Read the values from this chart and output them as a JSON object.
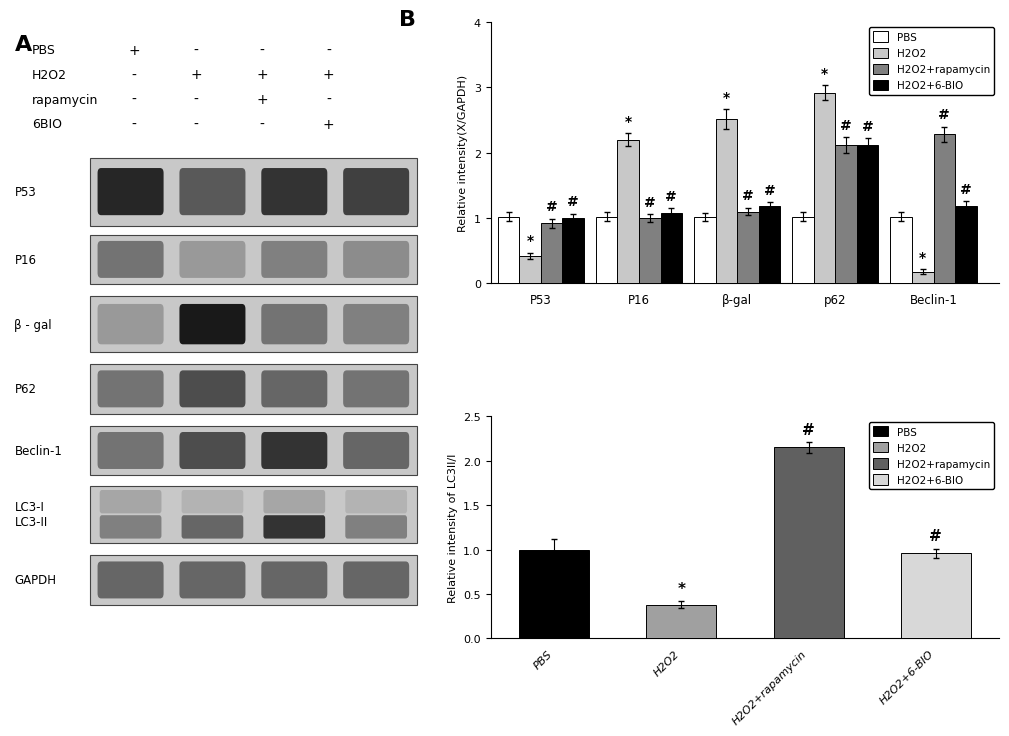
{
  "panel_A": {
    "labels_rows": [
      "PBS",
      "H2O2",
      "rapamycin",
      "6BIO"
    ],
    "cols": [
      "+",
      "-",
      "-",
      "-",
      "-",
      "+",
      "+",
      "+",
      "-",
      "-",
      "+",
      "-",
      "-",
      "-",
      "-",
      "+"
    ],
    "protein_labels": [
      "P53",
      "P16",
      "β - gal",
      "P62",
      "Beclin-1",
      "LC3-I\nLC3-II",
      "GAPDH"
    ],
    "n_bands": [
      1,
      1,
      1,
      1,
      1,
      2,
      1
    ],
    "band_intensities_P53": [
      0.85,
      0.65,
      0.8,
      0.75
    ],
    "band_intensities_P16": [
      0.55,
      0.4,
      0.5,
      0.45
    ],
    "band_intensities_bgal": [
      0.4,
      0.9,
      0.55,
      0.5
    ],
    "band_intensities_P62": [
      0.55,
      0.7,
      0.6,
      0.55
    ],
    "band_intensities_Beclin1": [
      0.55,
      0.7,
      0.8,
      0.6
    ],
    "band_intensities_LC3I": [
      0.35,
      0.3,
      0.35,
      0.3
    ],
    "band_intensities_LC3II": [
      0.5,
      0.6,
      0.8,
      0.5
    ],
    "band_intensities_GAPDH": [
      0.6,
      0.6,
      0.6,
      0.6
    ]
  },
  "panel_B_top": {
    "title": "",
    "ylabel": "Relative intensity(X/GAPDH)",
    "ylim": [
      0,
      4
    ],
    "yticks": [
      0,
      1,
      2,
      3,
      4
    ],
    "categories": [
      "P53",
      "P16",
      "β-gal",
      "p62",
      "Beclin-1"
    ],
    "series_labels": [
      "PBS",
      "H2O2",
      "H2O2+rapamycin",
      "H2O2+6-BIO"
    ],
    "colors": [
      "#FFFFFF",
      "#C8C8C8",
      "#808080",
      "#000000"
    ],
    "edge_color": "#000000",
    "data": {
      "PBS": [
        1.02,
        1.02,
        1.02,
        1.02,
        1.02
      ],
      "H2O2": [
        0.42,
        2.2,
        2.52,
        2.92,
        0.18
      ],
      "H2O2+rapamycin": [
        0.92,
        1.0,
        1.1,
        2.12,
        2.28
      ],
      "H2O2+6-BIO": [
        1.0,
        1.08,
        1.18,
        2.12,
        1.18
      ]
    },
    "errors": {
      "PBS": [
        0.07,
        0.07,
        0.06,
        0.07,
        0.07
      ],
      "H2O2": [
        0.05,
        0.1,
        0.15,
        0.12,
        0.04
      ],
      "H2O2+rapamycin": [
        0.07,
        0.06,
        0.06,
        0.12,
        0.12
      ],
      "H2O2+6-BIO": [
        0.07,
        0.07,
        0.07,
        0.1,
        0.08
      ]
    },
    "annotations": {
      "P53": {
        "H2O2": "*",
        "H2O2+rapamycin": "#",
        "H2O2+6-BIO": "#"
      },
      "P16": {
        "H2O2": "*",
        "H2O2+rapamycin": "#",
        "H2O2+6-BIO": "#"
      },
      "b-gal": {
        "H2O2": "*",
        "H2O2+rapamycin": "#",
        "H2O2+6-BIO": "#"
      },
      "p62": {
        "H2O2": "*",
        "H2O2+rapamycin": "#",
        "H2O2+6-BIO": "#"
      },
      "Beclin1": {
        "H2O2": "*",
        "H2O2+rapamycin": "#",
        "H2O2+6-BIO": "#"
      }
    }
  },
  "panel_B_bot": {
    "ylabel": "Relative intensity of LC3II/I",
    "ylim": [
      0,
      2.5
    ],
    "yticks": [
      0.0,
      0.5,
      1.0,
      1.5,
      2.0,
      2.5
    ],
    "categories": [
      "PBS",
      "H2O2",
      "H2O2+rapamycin",
      "H2O2+6-BIO"
    ],
    "series_labels": [
      "PBS",
      "H2O2",
      "H2O2+rapamycin",
      "H2O2+6-BIO"
    ],
    "colors": [
      "#000000",
      "#A0A0A0",
      "#606060",
      "#D8D8D8"
    ],
    "edge_color": "#000000",
    "data": [
      1.0,
      0.38,
      2.15,
      0.96
    ],
    "errors": [
      0.12,
      0.04,
      0.06,
      0.05
    ],
    "annotations": [
      "",
      "*",
      "#",
      "#"
    ]
  }
}
